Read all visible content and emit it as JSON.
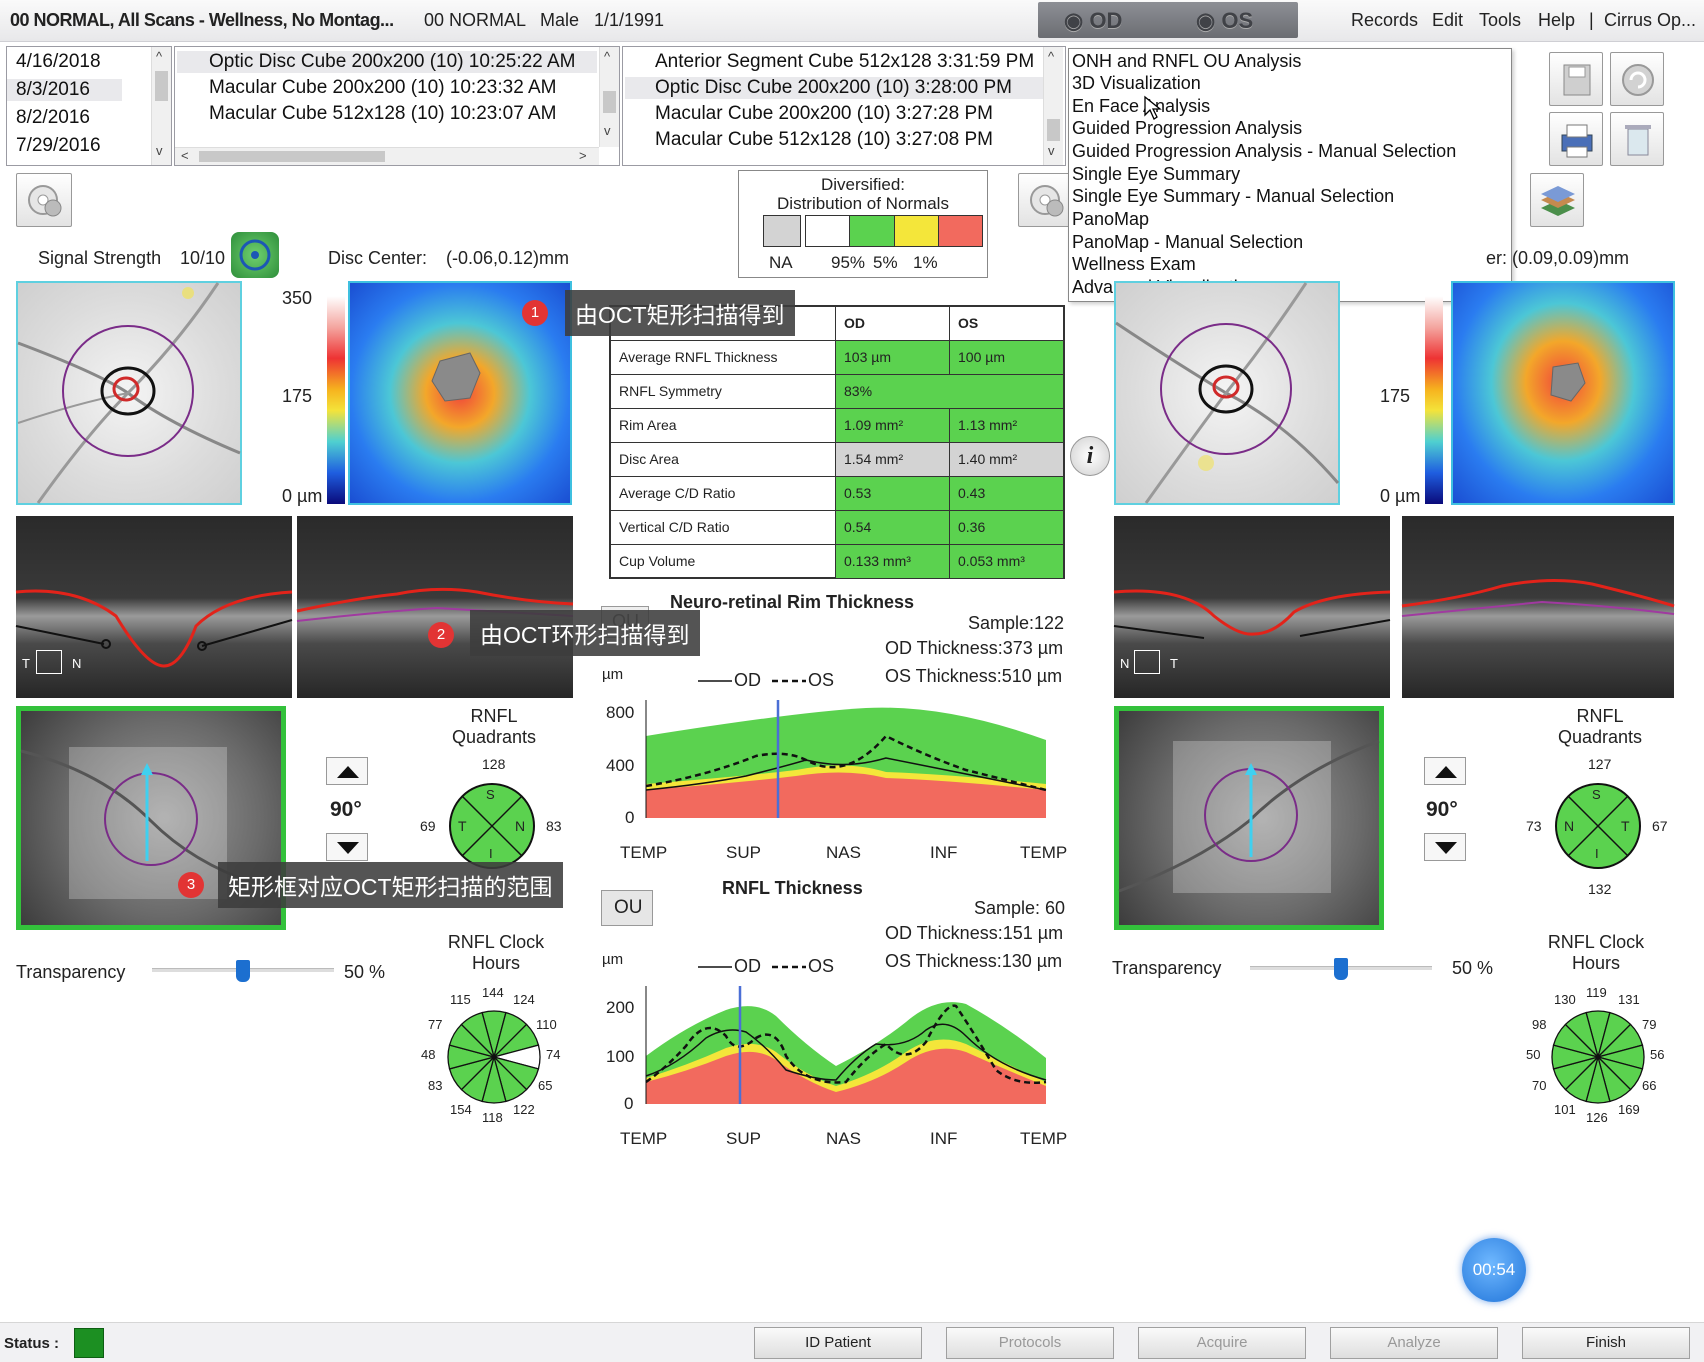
{
  "titlebar": {
    "patient_title": "00 NORMAL, All Scans - Wellness, No Montag...",
    "patient_id": "00 NORMAL",
    "gender": "Male",
    "dob": "1/1/1991",
    "od_label": "OD",
    "os_label": "OS",
    "menu": [
      "Records",
      "Edit",
      "Tools",
      "Help",
      "|",
      "Cirrus Op..."
    ]
  },
  "dates": [
    "4/16/2018",
    "8/3/2016",
    "8/2/2016",
    "7/29/2016"
  ],
  "scans_left": [
    "Optic Disc Cube 200x200 (10) 10:25:22 AM",
    "Macular Cube 200x200 (10) 10:23:32 AM",
    "Macular Cube 512x128 (10) 10:23:07 AM"
  ],
  "scans_right": [
    "Anterior Segment Cube 512x128 3:31:59 PM",
    "Optic Disc Cube 200x200 (10) 3:28:00 PM",
    "Macular Cube 200x200 (10) 3:27:28 PM",
    "Macular Cube 512x128 (10) 3:27:08 PM"
  ],
  "dropdown": [
    "ONH and RNFL OU Analysis",
    "3D Visualization",
    "En Face Analysis",
    "Guided Progression Analysis",
    "Guided Progression Analysis - Manual Selection",
    "Single Eye Summary",
    "Single Eye Summary - Manual Selection",
    "PanoMap",
    "PanoMap - Manual Selection",
    "Wellness Exam",
    "Advanced Visualization"
  ],
  "distribution": {
    "title1": "Diversified:",
    "title2": "Distribution of Normals",
    "labels": [
      "NA",
      "95%",
      "5%",
      "1%"
    ],
    "colors": [
      "#d3d3d3",
      "#ffffff",
      "#5bd24f",
      "#f4e63a",
      "#f26a5e"
    ]
  },
  "od": {
    "signal_label": "Signal Strength",
    "signal_value": "10/10",
    "disc_center_label": "Disc Center:",
    "disc_center_value": "(-0.06,0.12)mm",
    "scale": [
      "350",
      "175",
      "0 µm"
    ],
    "angle": "90°",
    "quadrants_title": "RNFL\nQuadrants",
    "quadrants": {
      "top": "128",
      "left": "69",
      "right": "83",
      "bottom": "",
      "S": "S",
      "T": "T",
      "N": "N",
      "I": "I"
    },
    "clock_title": "RNFL  Clock\nHours",
    "clock": [
      "144",
      "124",
      "110",
      "74",
      "65",
      "122",
      "118",
      "154",
      "83",
      "48",
      "77",
      "115"
    ],
    "transparency_label": "Transparency",
    "transparency_value": "50 %",
    "bscan_labels": [
      "T",
      "N"
    ]
  },
  "os": {
    "disc_center_value": "er:  (0.09,0.09)mm",
    "scale": [
      "175",
      "0 µm"
    ],
    "angle": "90°",
    "quadrants_title": "RNFL\nQuadrants",
    "quadrants": {
      "top": "127",
      "left": "73",
      "right": "67",
      "bottom": "132",
      "S": "S",
      "T": "T",
      "N": "N",
      "I": "I"
    },
    "clock_title": "RNFL  Clock\nHours",
    "clock": [
      "119",
      "131",
      "79",
      "56",
      "66",
      "169",
      "126",
      "101",
      "70",
      "50",
      "98",
      "130"
    ],
    "transparency_label": "Transparency",
    "transparency_value": "50 %",
    "bscan_labels": [
      "N",
      "T"
    ]
  },
  "table": {
    "headers": [
      "",
      "OD",
      "OS"
    ],
    "rows": [
      {
        "label": "Average RNFL Thickness",
        "od": "103 µm",
        "os": "100 µm"
      },
      {
        "label": "RNFL Symmetry",
        "od": "83%",
        "os": ""
      },
      {
        "label": "Rim Area",
        "od": "1.09 mm²",
        "os": "1.13 mm²"
      },
      {
        "label": "Disc Area",
        "od": "1.54 mm²",
        "os": "1.40 mm²"
      },
      {
        "label": "Average C/D Ratio",
        "od": "0.53",
        "os": "0.43"
      },
      {
        "label": "Vertical C/D Ratio",
        "od": "0.54",
        "os": "0.36"
      },
      {
        "label": "Cup Volume",
        "od": "0.133 mm³",
        "os": "0.053 mm³"
      }
    ]
  },
  "nrr": {
    "title": "Neuro-retinal Rim Thickness",
    "sample": "Sample:122",
    "od_thickness": "OD Thickness:373 µm",
    "os_thickness": "OS Thickness:510 µm",
    "unit": "µm",
    "legend_od": "OD",
    "legend_os": "OS",
    "yticks": [
      "800",
      "400",
      "0"
    ],
    "xticks": [
      "TEMP",
      "SUP",
      "NAS",
      "INF",
      "TEMP"
    ]
  },
  "rnfl": {
    "title": "RNFL Thickness",
    "ou_label": "OU",
    "sample": "Sample: 60",
    "od_thickness": "OD Thickness:151 µm",
    "os_thickness": "OS Thickness:130 µm",
    "unit": "µm",
    "legend_od": "OD",
    "legend_os": "OS",
    "yticks": [
      "200",
      "100",
      "0"
    ],
    "xticks": [
      "TEMP",
      "SUP",
      "NAS",
      "INF",
      "TEMP"
    ]
  },
  "annotations": [
    {
      "num": "1",
      "text": "由OCT矩形扫描得到"
    },
    {
      "num": "2",
      "text": "由OCT环形扫描得到"
    },
    {
      "num": "3",
      "text": "矩形框对应OCT矩形扫描的范围"
    }
  ],
  "timer": "00:54",
  "status_label": "Status :",
  "bottom_buttons": [
    "ID Patient",
    "Protocols",
    "Acquire",
    "Analyze",
    "Finish"
  ],
  "ou_small_label": "OU"
}
